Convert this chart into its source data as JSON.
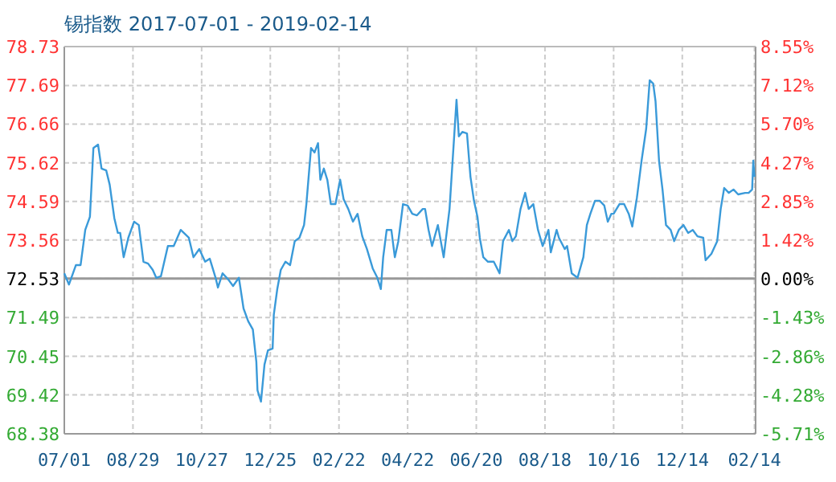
{
  "chart_data": {
    "type": "line",
    "title": "锡指数 2017-07-01 - 2019-02-14",
    "x": [
      "2017-07-01",
      "2017-07-05",
      "2017-07-11",
      "2017-07-15",
      "2017-07-19",
      "2017-07-23",
      "2017-07-26",
      "2017-07-30",
      "2017-08-02",
      "2017-08-06",
      "2017-08-09",
      "2017-08-13",
      "2017-08-16",
      "2017-08-18",
      "2017-08-21",
      "2017-08-25",
      "2017-08-30",
      "2017-09-03",
      "2017-09-07",
      "2017-09-11",
      "2017-09-15",
      "2017-09-18",
      "2017-09-22",
      "2017-09-28",
      "2017-10-03",
      "2017-10-09",
      "2017-10-16",
      "2017-10-20",
      "2017-10-25",
      "2017-10-30",
      "2017-11-03",
      "2017-11-08",
      "2017-11-10",
      "2017-11-14",
      "2017-11-19",
      "2017-11-23",
      "2017-11-28",
      "2017-12-02",
      "2017-12-06",
      "2017-12-10",
      "2017-12-13",
      "2017-12-14",
      "2017-12-17",
      "2017-12-20",
      "2017-12-23",
      "2017-12-27",
      "2017-12-28",
      "2017-12-31",
      "2018-01-03",
      "2018-01-07",
      "2018-01-11",
      "2018-01-15",
      "2018-01-19",
      "2018-01-23",
      "2018-01-25",
      "2018-01-29",
      "2018-02-01",
      "2018-02-04",
      "2018-02-06",
      "2018-02-09",
      "2018-02-12",
      "2018-02-15",
      "2018-02-19",
      "2018-02-23",
      "2018-02-26",
      "2018-03-02",
      "2018-03-06",
      "2018-03-10",
      "2018-03-14",
      "2018-03-18",
      "2018-03-23",
      "2018-03-27",
      "2018-03-30",
      "2018-04-01",
      "2018-04-04",
      "2018-04-08",
      "2018-04-11",
      "2018-04-14",
      "2018-04-18",
      "2018-04-22",
      "2018-04-26",
      "2018-04-30",
      "2018-05-05",
      "2018-05-07",
      "2018-05-10",
      "2018-05-13",
      "2018-05-18",
      "2018-05-23",
      "2018-05-28",
      "2018-06-03",
      "2018-06-05",
      "2018-06-08",
      "2018-06-12",
      "2018-06-15",
      "2018-06-18",
      "2018-06-21",
      "2018-06-23",
      "2018-06-26",
      "2018-06-30",
      "2018-07-05",
      "2018-07-10",
      "2018-07-13",
      "2018-07-18",
      "2018-07-21",
      "2018-07-24",
      "2018-07-28",
      "2018-08-01",
      "2018-08-04",
      "2018-08-08",
      "2018-08-12",
      "2018-08-16",
      "2018-08-21",
      "2018-08-23",
      "2018-08-28",
      "2018-08-30",
      "2018-09-04",
      "2018-09-06",
      "2018-09-10",
      "2018-09-15",
      "2018-09-20",
      "2018-09-23",
      "2018-09-26",
      "2018-09-30",
      "2018-10-04",
      "2018-10-08",
      "2018-10-11",
      "2018-10-14",
      "2018-10-16",
      "2018-10-21",
      "2018-10-25",
      "2018-10-29",
      "2018-11-01",
      "2018-11-05",
      "2018-11-09",
      "2018-11-13",
      "2018-11-16",
      "2018-11-19",
      "2018-11-21",
      "2018-11-24",
      "2018-11-27",
      "2018-11-30",
      "2018-12-04",
      "2018-12-07",
      "2018-12-11",
      "2018-12-15",
      "2018-12-19",
      "2018-12-23",
      "2018-12-27",
      "2019-01-01",
      "2019-01-03",
      "2019-01-08",
      "2019-01-13",
      "2019-01-16",
      "2019-01-19",
      "2019-01-23",
      "2019-01-27",
      "2019-01-31",
      "2019-02-06",
      "2019-02-09",
      "2019-02-12",
      "2019-02-13",
      "2019-02-14"
    ],
    "series": [
      {
        "color": "#3a9ad9",
        "values": [
          72.67,
          72.37,
          72.89,
          72.89,
          73.83,
          74.18,
          76.02,
          76.11,
          75.47,
          75.42,
          75.04,
          74.14,
          73.75,
          73.75,
          73.1,
          73.62,
          74.05,
          73.96,
          72.98,
          72.93,
          72.76,
          72.55,
          72.59,
          73.4,
          73.4,
          73.83,
          73.62,
          73.1,
          73.32,
          72.98,
          73.06,
          72.55,
          72.29,
          72.67,
          72.5,
          72.33,
          72.55,
          71.73,
          71.39,
          71.17,
          70.31,
          69.54,
          69.24,
          70.23,
          70.61,
          70.66,
          71.56,
          72.25,
          72.76,
          72.98,
          72.89,
          73.53,
          73.62,
          73.96,
          74.52,
          76.02,
          75.9,
          76.15,
          75.17,
          75.47,
          75.17,
          74.52,
          74.52,
          75.17,
          74.65,
          74.39,
          74.05,
          74.26,
          73.66,
          73.32,
          72.8,
          72.55,
          72.25,
          73.1,
          73.83,
          73.83,
          73.1,
          73.53,
          74.52,
          74.48,
          74.26,
          74.22,
          74.39,
          74.39,
          73.83,
          73.4,
          73.96,
          73.1,
          74.39,
          77.31,
          76.33,
          76.45,
          76.41,
          75.25,
          74.61,
          74.18,
          73.62,
          73.1,
          72.98,
          72.98,
          72.67,
          73.53,
          73.83,
          73.53,
          73.66,
          74.39,
          74.82,
          74.39,
          74.52,
          73.83,
          73.4,
          73.83,
          73.23,
          73.83,
          73.62,
          73.32,
          73.4,
          72.67,
          72.55,
          73.1,
          73.96,
          74.26,
          74.61,
          74.61,
          74.48,
          74.05,
          74.26,
          74.26,
          74.52,
          74.52,
          74.26,
          73.92,
          74.69,
          75.68,
          76.54,
          77.83,
          77.74,
          77.27,
          75.68,
          74.91,
          73.96,
          73.83,
          73.53,
          73.83,
          73.96,
          73.75,
          73.83,
          73.66,
          73.62,
          73.02,
          73.19,
          73.53,
          74.39,
          74.95,
          74.82,
          74.91,
          74.78,
          74.82,
          74.82,
          74.91,
          75.68,
          75.25
        ]
      }
    ],
    "xlim": [
      "2017-07-01",
      "2019-02-15"
    ],
    "xticks": [
      {
        "value": "2017-07-01",
        "label": "07/01"
      },
      {
        "value": "2017-08-29",
        "label": "08/29"
      },
      {
        "value": "2017-10-27",
        "label": "10/27"
      },
      {
        "value": "2017-12-25",
        "label": "12/25"
      },
      {
        "value": "2018-02-22",
        "label": "02/22"
      },
      {
        "value": "2018-04-22",
        "label": "04/22"
      },
      {
        "value": "2018-06-20",
        "label": "06/20"
      },
      {
        "value": "2018-08-18",
        "label": "08/18"
      },
      {
        "value": "2018-10-16",
        "label": "10/16"
      },
      {
        "value": "2018-12-14",
        "label": "12/14"
      },
      {
        "value": "2019-02-14",
        "label": "02/14"
      }
    ],
    "ylim": [
      68.38,
      78.73
    ],
    "yticks": [
      68.38,
      69.42,
      70.45,
      71.49,
      72.53,
      73.56,
      74.59,
      75.62,
      76.66,
      77.69,
      78.73
    ],
    "y2lim": [
      -5.71,
      8.55
    ],
    "y2ticks": [
      {
        "value": -5.71,
        "label": "-5.71%"
      },
      {
        "value": -4.28,
        "label": "-4.28%"
      },
      {
        "value": -2.86,
        "label": "-2.86%"
      },
      {
        "value": -1.43,
        "label": "-1.43%"
      },
      {
        "value": 0,
        "label": "0.00%"
      },
      {
        "value": 1.42,
        "label": "1.42%"
      },
      {
        "value": 2.85,
        "label": "2.85%"
      },
      {
        "value": 4.27,
        "label": "4.27%"
      },
      {
        "value": 5.7,
        "label": "5.70%"
      },
      {
        "value": 7.12,
        "label": "7.12%"
      },
      {
        "value": 8.55,
        "label": "8.55%"
      }
    ],
    "ref_lines": [
      {
        "axis": "y",
        "value": 72.53,
        "color": "#999999"
      }
    ],
    "grid": true
  }
}
